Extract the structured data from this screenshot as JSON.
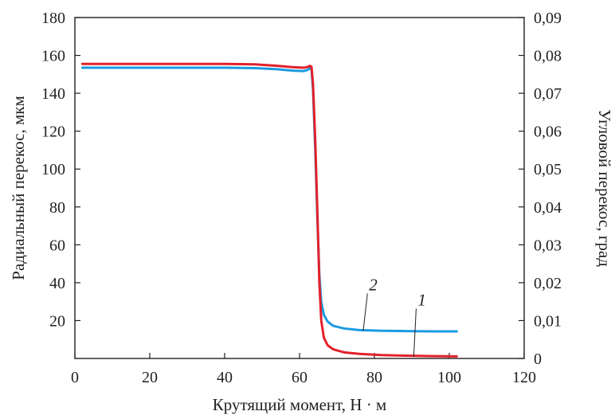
{
  "chart_data": {
    "type": "line",
    "xlabel": "Крутящий момент, Н · м",
    "ylabel_left": "Радиальный перекос, мкм",
    "ylabel_right": "Угловой перекос, град",
    "xlim": [
      0,
      120
    ],
    "ylim_left": [
      0,
      180
    ],
    "ylim_right": [
      0,
      0.09
    ],
    "x_ticks": [
      "0",
      "20",
      "40",
      "60",
      "80",
      "100",
      "120"
    ],
    "y_left_ticks": [
      "20",
      "40",
      "60",
      "80",
      "100",
      "120",
      "140",
      "160",
      "180"
    ],
    "y_right_ticks": [
      "0",
      "0,01",
      "0,02",
      "0,03",
      "0,04",
      "0,05",
      "0,06",
      "0,07",
      "0,08",
      "0,09"
    ],
    "grid": false,
    "series": [
      {
        "name": "1",
        "color": "#e3202a",
        "axis": "left",
        "points": [
          [
            2,
            155.5
          ],
          [
            20,
            155.5
          ],
          [
            40,
            155.5
          ],
          [
            48,
            155.3
          ],
          [
            54,
            154.5
          ],
          [
            58,
            153.8
          ],
          [
            61,
            153.5
          ],
          [
            62,
            153.8
          ],
          [
            62.8,
            154.5
          ],
          [
            63.2,
            154.0
          ],
          [
            63.6,
            145
          ],
          [
            64.2,
            115
          ],
          [
            64.8,
            75
          ],
          [
            65.3,
            40
          ],
          [
            65.8,
            20
          ],
          [
            66.5,
            11
          ],
          [
            67.5,
            7
          ],
          [
            69,
            4.8
          ],
          [
            72,
            3.2
          ],
          [
            76,
            2.4
          ],
          [
            82,
            1.8
          ],
          [
            90,
            1.4
          ],
          [
            96,
            1.2
          ],
          [
            102,
            1.1
          ]
        ]
      },
      {
        "name": "2",
        "color": "#1a9be0",
        "axis": "left",
        "points": [
          [
            2,
            153.5
          ],
          [
            20,
            153.5
          ],
          [
            40,
            153.5
          ],
          [
            48,
            153.3
          ],
          [
            54,
            152.7
          ],
          [
            58,
            152.0
          ],
          [
            61,
            151.7
          ],
          [
            62,
            152.2
          ],
          [
            62.8,
            153.2
          ],
          [
            63.2,
            152.6
          ],
          [
            63.6,
            142
          ],
          [
            64.2,
            110
          ],
          [
            64.8,
            72
          ],
          [
            65.3,
            44
          ],
          [
            65.8,
            30
          ],
          [
            66.5,
            23
          ],
          [
            67.5,
            19.5
          ],
          [
            69,
            17.2
          ],
          [
            72,
            15.8
          ],
          [
            76,
            15.0
          ],
          [
            82,
            14.6
          ],
          [
            90,
            14.4
          ],
          [
            96,
            14.3
          ],
          [
            102,
            14.3
          ]
        ]
      }
    ],
    "annotations": [
      {
        "text": "1",
        "series": "1",
        "label_at": [
          92,
          28
        ],
        "pointer_to": [
          90.5,
          0.8
        ]
      },
      {
        "text": "2",
        "series": "2",
        "label_at": [
          79,
          36
        ],
        "pointer_to": [
          77,
          14.5
        ]
      }
    ]
  }
}
